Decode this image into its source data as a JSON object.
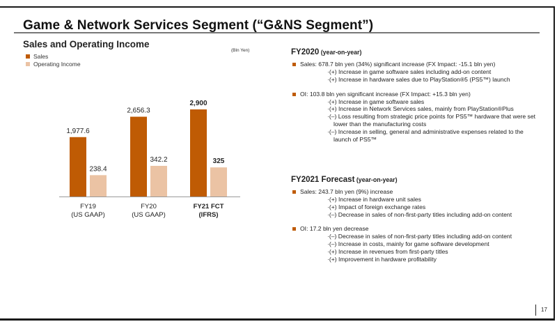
{
  "slide": {
    "title": "Game & Network Services Segment (“G&NS Segment”)",
    "page_number": "17"
  },
  "chart_data": {
    "type": "bar",
    "title": "Sales and Operating Income",
    "unit": "(Bln Yen)",
    "categories": [
      {
        "line1": "FY19",
        "line2": "(US GAAP)",
        "bold": false
      },
      {
        "line1": "FY20",
        "line2": "(US GAAP)",
        "bold": false
      },
      {
        "line1": "FY21 FCT",
        "line2": "(IFRS)",
        "bold": true
      }
    ],
    "series": [
      {
        "name": "Sales",
        "color": "#BF5B04",
        "values": [
          1977.6,
          2656.3,
          2900
        ],
        "labels": [
          "1,977.6",
          "2,656.3",
          "2,900"
        ]
      },
      {
        "name": "Operating Income",
        "color": "#EBC3A4",
        "values": [
          238.4,
          342.2,
          325
        ],
        "labels": [
          "238.4",
          "342.2",
          "325"
        ]
      }
    ],
    "legend": "top-left",
    "grid": false
  },
  "fy2020": {
    "heading": "FY2020",
    "heading_note": "(year-on-year)",
    "groups": [
      {
        "bullet": "Sales: 678.7 bln yen (34%) significant increase (FX Impact: -15.1 bln yen)",
        "items": [
          [
            "·(+) Increase in game software sales including add-on content"
          ],
          [
            "·(+) Increase in hardware sales due to PlayStation®5 (PS5™) launch"
          ]
        ]
      },
      {
        "bullet": "OI: 103.8 bln yen significant increase (FX Impact: +15.3 bln yen)",
        "items": [
          [
            "·(+) Increase in game software sales"
          ],
          [
            "·(+) Increase in Network Services sales, mainly from PlayStation®Plus"
          ],
          [
            "·(–) Loss resulting from strategic price points for PS5™ hardware that were set",
            "lower than the manufacturing costs"
          ],
          [
            "·(–) Increase in selling, general and administrative expenses related to the",
            "launch of PS5™"
          ]
        ]
      }
    ]
  },
  "fy2021": {
    "heading": "FY2021 Forecast",
    "heading_note": "(year-on-year)",
    "groups": [
      {
        "bullet": "Sales: 243.7 bln yen (9%) increase",
        "items": [
          [
            "·(+) Increase in hardware unit sales"
          ],
          [
            "·(+) Impact of foreign exchange rates"
          ],
          [
            "·(–) Decrease in sales of non-first-party titles including add-on content"
          ]
        ]
      },
      {
        "bullet": "OI: 17.2 bln yen decrease",
        "items": [
          [
            "·(–) Decrease in sales of non-first-party titles including add-on content"
          ],
          [
            "·(–) Increase in costs, mainly for game software development"
          ],
          [
            "·(+) Increase in revenues from first-party titles"
          ],
          [
            "·(+) Improvement in hardware profitability"
          ]
        ]
      }
    ]
  }
}
